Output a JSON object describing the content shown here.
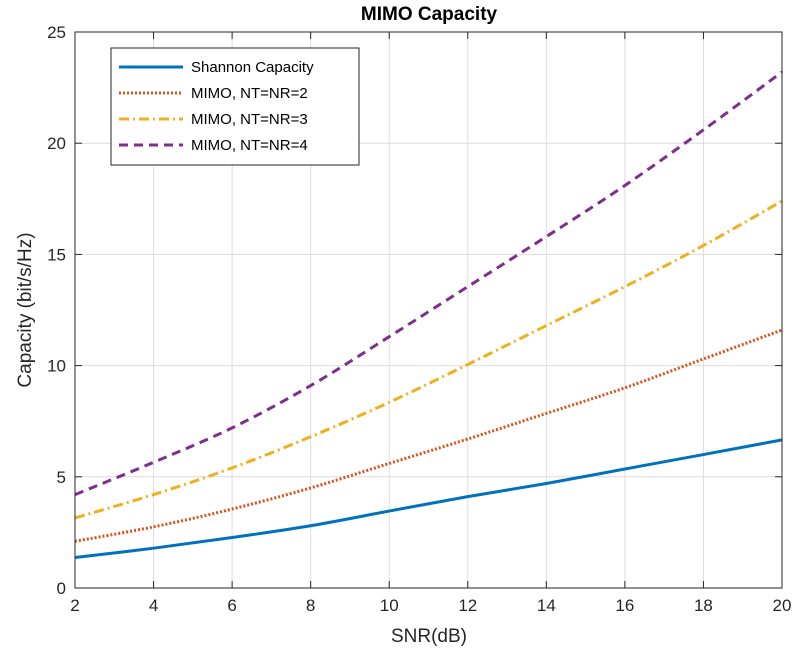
{
  "chart_data": {
    "type": "line",
    "title": "MIMO Capacity",
    "xlabel": "SNR(dB)",
    "ylabel": "Capacity (bit/s/Hz)",
    "xlim": [
      2,
      20
    ],
    "ylim": [
      0,
      25
    ],
    "xticks": [
      2,
      4,
      6,
      8,
      10,
      12,
      14,
      16,
      18,
      20
    ],
    "yticks": [
      0,
      5,
      10,
      15,
      20,
      25
    ],
    "grid": true,
    "legend_position": "top-left",
    "x": [
      2,
      4,
      6,
      8,
      10,
      12,
      14,
      16,
      18,
      20
    ],
    "series": [
      {
        "name": "Shannon Capacity",
        "values": [
          1.37,
          1.79,
          2.27,
          2.8,
          3.46,
          4.11,
          4.7,
          5.35,
          6.0,
          6.66
        ],
        "color": "#0072BD",
        "style": "solid"
      },
      {
        "name": "MIMO, NT=NR=2",
        "values": [
          2.1,
          2.75,
          3.55,
          4.5,
          5.6,
          6.7,
          7.85,
          9.0,
          10.3,
          11.6
        ],
        "color": "#D95319",
        "style": "dotted"
      },
      {
        "name": "MIMO, NT=NR=3",
        "values": [
          3.15,
          4.2,
          5.4,
          6.8,
          8.35,
          10.05,
          11.8,
          13.55,
          15.4,
          17.4
        ],
        "color": "#EDB120",
        "style": "dashdot"
      },
      {
        "name": "MIMO, NT=NR=4",
        "values": [
          4.2,
          5.65,
          7.2,
          9.1,
          11.3,
          13.55,
          15.8,
          18.1,
          20.6,
          23.2
        ],
        "color": "#7E2F8E",
        "style": "dashed"
      }
    ]
  }
}
